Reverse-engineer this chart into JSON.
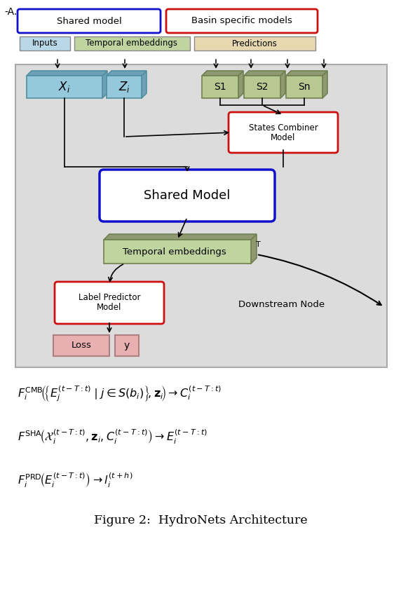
{
  "title_label": "-A.",
  "legend_shared_model": "Shared model",
  "legend_basin_specific": "Basin specific models",
  "legend_inputs": "Inputs",
  "legend_temporal": "Temporal embeddings",
  "legend_predictions": "Predictions",
  "color_shared_border": "#1111CC",
  "color_basin_border": "#CC1111",
  "color_inputs_bg": "#B8D8E8",
  "color_temporal_bg": "#C0D4A0",
  "color_predictions_bg": "#E8D8B0",
  "color_main_bg": "#DCDCDC",
  "color_xi_bg": "#96C8DC",
  "color_zi_bg": "#96C8DC",
  "color_s_bg": "#B8C890",
  "color_s_shadow": "#909870",
  "color_xi_shadow": "#70A0B8",
  "color_shared_model_box": "#FFFFFF",
  "color_temporal_emb_bg": "#C0D4A0",
  "color_temporal_shadow": "#909870",
  "color_label_predictor_bg": "#FFFFFF",
  "color_loss_bg": "#E8B0B0",
  "color_y_bg": "#E8B0B0",
  "fig_caption": "Figure 2:  HydroNets Architecture"
}
